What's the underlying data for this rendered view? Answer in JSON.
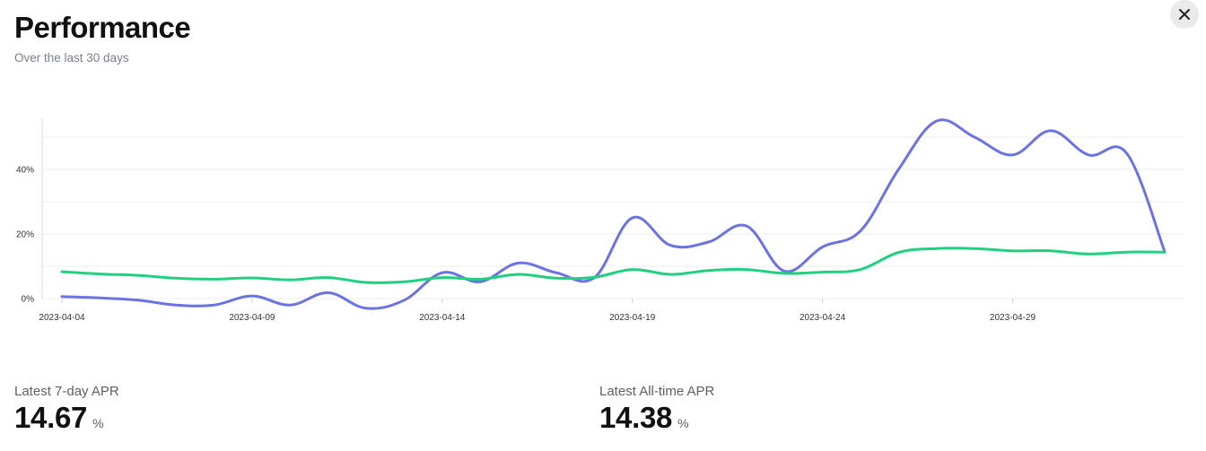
{
  "header": {
    "title": "Performance",
    "subtitle": "Over the last 30 days",
    "close_icon": "close-icon"
  },
  "stats": [
    {
      "label": "Latest 7-day APR",
      "value": "14.67",
      "unit": "%"
    },
    {
      "label": "Latest All-time APR",
      "value": "14.38",
      "unit": "%"
    }
  ],
  "chart_data": {
    "type": "line",
    "x": [
      "2023-04-04",
      "2023-04-05",
      "2023-04-06",
      "2023-04-07",
      "2023-04-08",
      "2023-04-09",
      "2023-04-10",
      "2023-04-11",
      "2023-04-12",
      "2023-04-13",
      "2023-04-14",
      "2023-04-15",
      "2023-04-16",
      "2023-04-17",
      "2023-04-18",
      "2023-04-19",
      "2023-04-20",
      "2023-04-21",
      "2023-04-22",
      "2023-04-23",
      "2023-04-24",
      "2023-04-25",
      "2023-04-26",
      "2023-04-27",
      "2023-04-28",
      "2023-04-29",
      "2023-04-30",
      "2023-05-01",
      "2023-05-02",
      "2023-05-03"
    ],
    "xticks": [
      "2023-04-04",
      "2023-04-09",
      "2023-04-14",
      "2023-04-19",
      "2023-04-24",
      "2023-04-29"
    ],
    "yticks": [
      "0%",
      "20%",
      "40%"
    ],
    "ylim": [
      -4,
      56
    ],
    "grid": true,
    "series": [
      {
        "color": "#6b72e3",
        "values": [
          0.6,
          0.2,
          -0.5,
          -2.0,
          -2.0,
          0.8,
          -2.0,
          1.8,
          -3.0,
          -0.5,
          8.0,
          5.2,
          11.0,
          8.0,
          6.5,
          25.0,
          16.5,
          17.5,
          22.5,
          8.5,
          16.0,
          21.0,
          40.0,
          55.0,
          50.0,
          44.5,
          52.0,
          44.5,
          45.0,
          14.5
        ]
      },
      {
        "color": "#1fd17f",
        "values": [
          8.3,
          7.6,
          7.2,
          6.3,
          6.0,
          6.4,
          5.8,
          6.5,
          5.0,
          5.2,
          6.5,
          6.0,
          7.5,
          6.3,
          6.6,
          9.0,
          7.5,
          8.7,
          9.0,
          7.8,
          8.2,
          9.0,
          14.3,
          15.5,
          15.5,
          14.8,
          14.8,
          13.8,
          14.4,
          14.4
        ]
      }
    ]
  }
}
